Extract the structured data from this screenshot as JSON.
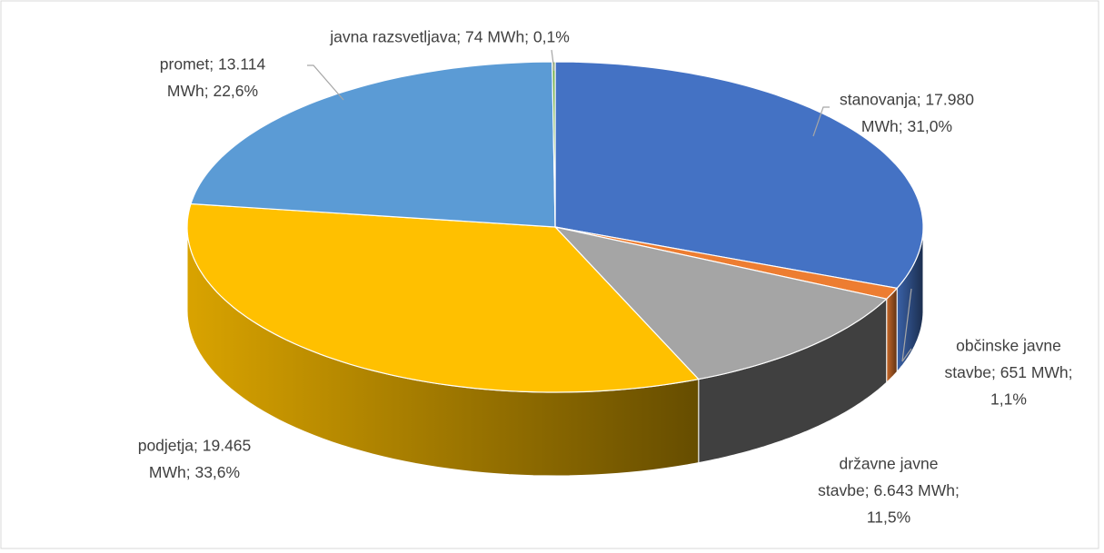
{
  "chart_data": {
    "type": "pie3d",
    "values": [
      17980,
      651,
      6643,
      19465,
      13114,
      74
    ],
    "value_labels": [
      [
        "stanovanja; 17.980",
        "MWh; 31,0%"
      ],
      [
        "občinske javne",
        "stavbe; 651 MWh;",
        "1,1%"
      ],
      [
        "državne javne",
        "stavbe; 6.643 MWh;",
        "11,5%"
      ],
      [
        "podjetja; 19.465",
        "MWh; 33,6%"
      ],
      [
        "promet; 13.114",
        "MWh; 22,6%"
      ],
      [
        "javna razsvetljava; 74 MWh; 0,1%"
      ]
    ],
    "colors": [
      "#4472c4",
      "#ed7d31",
      "#a5a5a5",
      "#ffc000",
      "#5b9bd5",
      "#70ad47"
    ]
  }
}
